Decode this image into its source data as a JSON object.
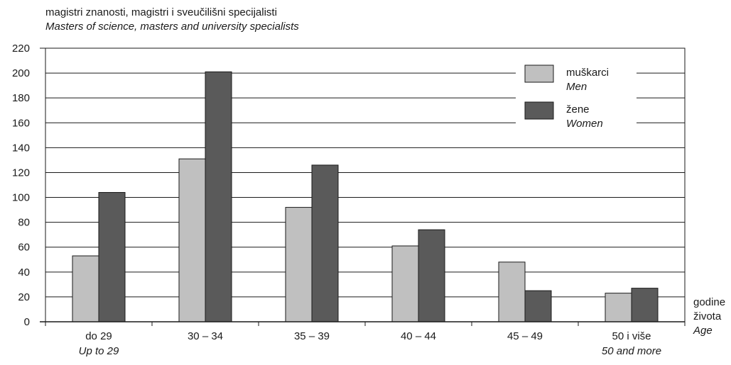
{
  "chart_data": {
    "type": "bar",
    "title": "magistri znanosti, magistri i sveučilišni specijalisti",
    "subtitle": "Masters of science, masters and university specialists",
    "categories": [
      {
        "label": "do 29",
        "label_en": "Up to 29"
      },
      {
        "label": "30 – 34",
        "label_en": ""
      },
      {
        "label": "35 – 39",
        "label_en": ""
      },
      {
        "label": "40 – 44",
        "label_en": ""
      },
      {
        "label": "45 – 49",
        "label_en": ""
      },
      {
        "label": "50 i više",
        "label_en": "50 and more"
      }
    ],
    "series": [
      {
        "name": "muškarci",
        "name_en": "Men",
        "color": "#c0c0c0",
        "values": [
          53,
          131,
          92,
          61,
          48,
          23
        ]
      },
      {
        "name": "žene",
        "name_en": "Women",
        "color": "#5a5a5a",
        "values": [
          104,
          201,
          126,
          74,
          25,
          27
        ]
      }
    ],
    "y_ticks": [
      0,
      20,
      40,
      60,
      80,
      100,
      120,
      140,
      160,
      180,
      200,
      220
    ],
    "ylim": [
      0,
      220
    ],
    "xlabel": [
      "godine",
      "života",
      "Age"
    ],
    "grid": true,
    "legend_position": "top-right"
  }
}
